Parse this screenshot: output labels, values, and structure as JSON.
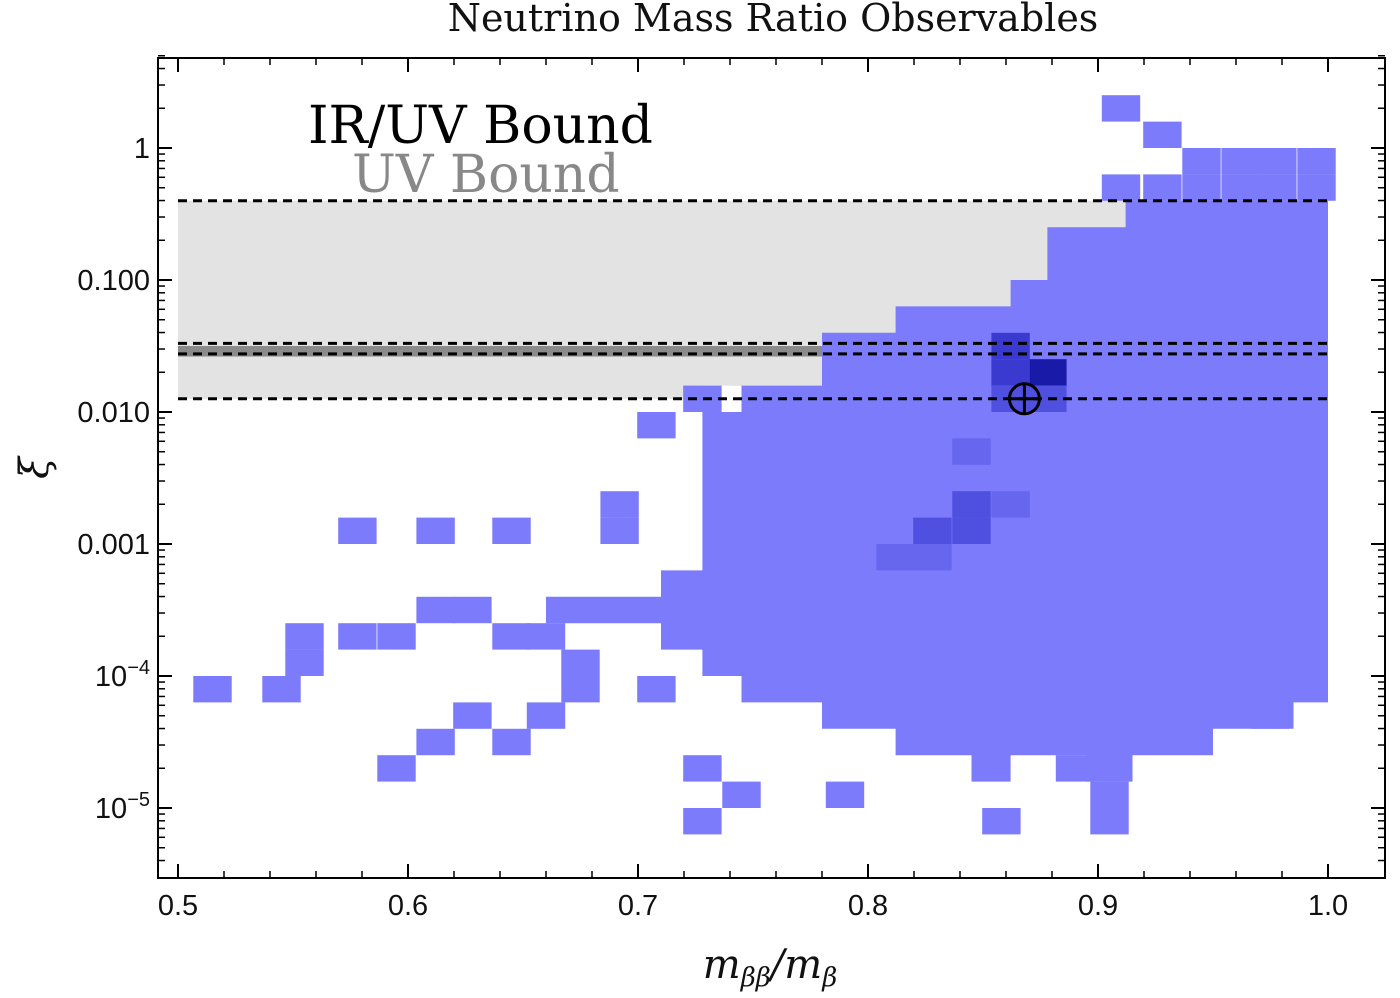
{
  "chart_data": {
    "type": "heatmap",
    "title": "Neutrino Mass Ratio Observables",
    "xlabel": {
      "main": "m",
      "sub_num": "ββ",
      "sep": "/",
      "den": "m",
      "sub_den": "β"
    },
    "ylabel": "ξ",
    "xlim": [
      0.5,
      1.0
    ],
    "ylim_log10": [
      -5.5,
      0.7
    ],
    "y_scale": "log",
    "x_ticks": [
      {
        "value": 0.5,
        "label": "0.5"
      },
      {
        "value": 0.6,
        "label": "0.6"
      },
      {
        "value": 0.7,
        "label": "0.7"
      },
      {
        "value": 0.8,
        "label": "0.8"
      },
      {
        "value": 0.9,
        "label": "0.9"
      },
      {
        "value": 1.0,
        "label": "1.0"
      }
    ],
    "y_ticks": [
      {
        "log10": 0,
        "label": "1"
      },
      {
        "log10": -1,
        "label": "0.100"
      },
      {
        "log10": -2,
        "label": "0.010"
      },
      {
        "log10": -3,
        "label": "0.001"
      },
      {
        "log10": -4,
        "label": "10",
        "exp": "−4"
      },
      {
        "log10": -5,
        "label": "10",
        "exp": "−5"
      }
    ],
    "bin_width": 0.0167,
    "bin_height_log10": 0.2,
    "base_color": "#7b7bfb",
    "bins": [
      [
        0.515,
        -4.1,
        1
      ],
      [
        0.545,
        -4.1,
        1
      ],
      [
        0.555,
        -3.9,
        1
      ],
      [
        0.555,
        -3.7,
        1
      ],
      [
        0.578,
        -3.7,
        1
      ],
      [
        0.578,
        -2.9,
        1
      ],
      [
        0.595,
        -3.7,
        1
      ],
      [
        0.595,
        -4.7,
        1
      ],
      [
        0.612,
        -3.5,
        1
      ],
      [
        0.612,
        -4.5,
        1
      ],
      [
        0.612,
        -2.9,
        1
      ],
      [
        0.628,
        -3.5,
        1
      ],
      [
        0.628,
        -4.3,
        1
      ],
      [
        0.645,
        -3.7,
        1
      ],
      [
        0.645,
        -4.5,
        1
      ],
      [
        0.645,
        -2.9,
        1
      ],
      [
        0.66,
        -3.7,
        1
      ],
      [
        0.66,
        -4.3,
        1
      ],
      [
        0.675,
        -3.9,
        1
      ],
      [
        0.675,
        -4.1,
        1
      ],
      [
        0.692,
        -2.7,
        1
      ],
      [
        0.692,
        -2.9,
        1
      ],
      [
        0.708,
        -2.1,
        1
      ],
      [
        0.708,
        -4.1,
        1
      ],
      [
        0.728,
        -1.9,
        1
      ],
      [
        0.728,
        -4.7,
        1
      ],
      [
        0.728,
        -5.1,
        1
      ],
      [
        0.745,
        -4.9,
        1
      ],
      [
        0.79,
        -4.9,
        1
      ],
      [
        0.858,
        -5.1,
        1
      ],
      [
        0.89,
        -4.7,
        1
      ],
      [
        0.905,
        -4.9,
        1
      ],
      [
        0.905,
        -5.1,
        1
      ],
      [
        0.975,
        -4.3,
        1
      ],
      [
        0.91,
        0.3,
        1
      ],
      [
        0.928,
        0.1,
        1
      ],
      [
        0.945,
        -0.1,
        1
      ],
      [
        0.962,
        -0.1,
        1
      ],
      [
        0.978,
        -0.1,
        1
      ],
      [
        0.995,
        -0.1,
        1
      ],
      [
        0.91,
        -0.3,
        1
      ],
      [
        0.928,
        -0.3,
        1
      ],
      [
        0.945,
        -0.3,
        1
      ],
      [
        0.962,
        -0.3,
        1
      ],
      [
        0.978,
        -0.3,
        1
      ],
      [
        0.995,
        -0.3,
        1
      ],
      [
        0.862,
        -1.5,
        4
      ],
      [
        0.878,
        -1.7,
        7
      ],
      [
        0.862,
        -1.7,
        4
      ],
      [
        0.862,
        -1.9,
        3
      ],
      [
        0.878,
        -1.9,
        3
      ],
      [
        0.845,
        -2.3,
        2
      ],
      [
        0.845,
        -2.7,
        3
      ],
      [
        0.862,
        -2.7,
        2
      ],
      [
        0.828,
        -2.9,
        3
      ],
      [
        0.845,
        -2.9,
        3
      ],
      [
        0.812,
        -3.1,
        2
      ],
      [
        0.828,
        -3.1,
        2
      ]
    ],
    "density_region": "blue",
    "bands": [
      {
        "name": "UV Bound",
        "low_log10": -1.9,
        "high_log10": -0.4,
        "color": "#e3e3e3"
      },
      {
        "name": "IR/UV Bound",
        "low_log10": -1.58,
        "high_log10": -1.5,
        "color": "#8a8a8a"
      }
    ],
    "dashed_lines_log10": [
      -0.4,
      -1.48,
      -1.56,
      -1.9
    ],
    "marker": {
      "x": 0.868,
      "y_log10": -1.9,
      "symbol": "⊕"
    },
    "legend": [
      {
        "label": "IR/UV Bound",
        "color": "#000000"
      },
      {
        "label": "UV Bound",
        "color": "#888888"
      }
    ],
    "legend_placement": "top-left"
  }
}
